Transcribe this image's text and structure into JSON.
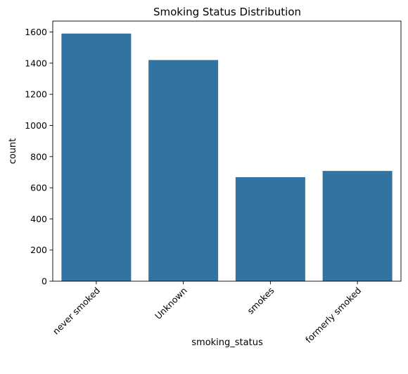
{
  "chart_data": {
    "type": "bar",
    "title": "Smoking Status Distribution",
    "xlabel": "smoking_status",
    "ylabel": "count",
    "categories": [
      "never smoked",
      "Unknown",
      "smokes",
      "formerly smoked"
    ],
    "values": [
      1590,
      1420,
      668,
      708
    ],
    "ylim": [
      0,
      1670
    ],
    "yticks": [
      0,
      200,
      400,
      600,
      800,
      1000,
      1200,
      1400,
      1600
    ],
    "bar_color": "#3274a1",
    "grid": false,
    "legend": "none"
  }
}
